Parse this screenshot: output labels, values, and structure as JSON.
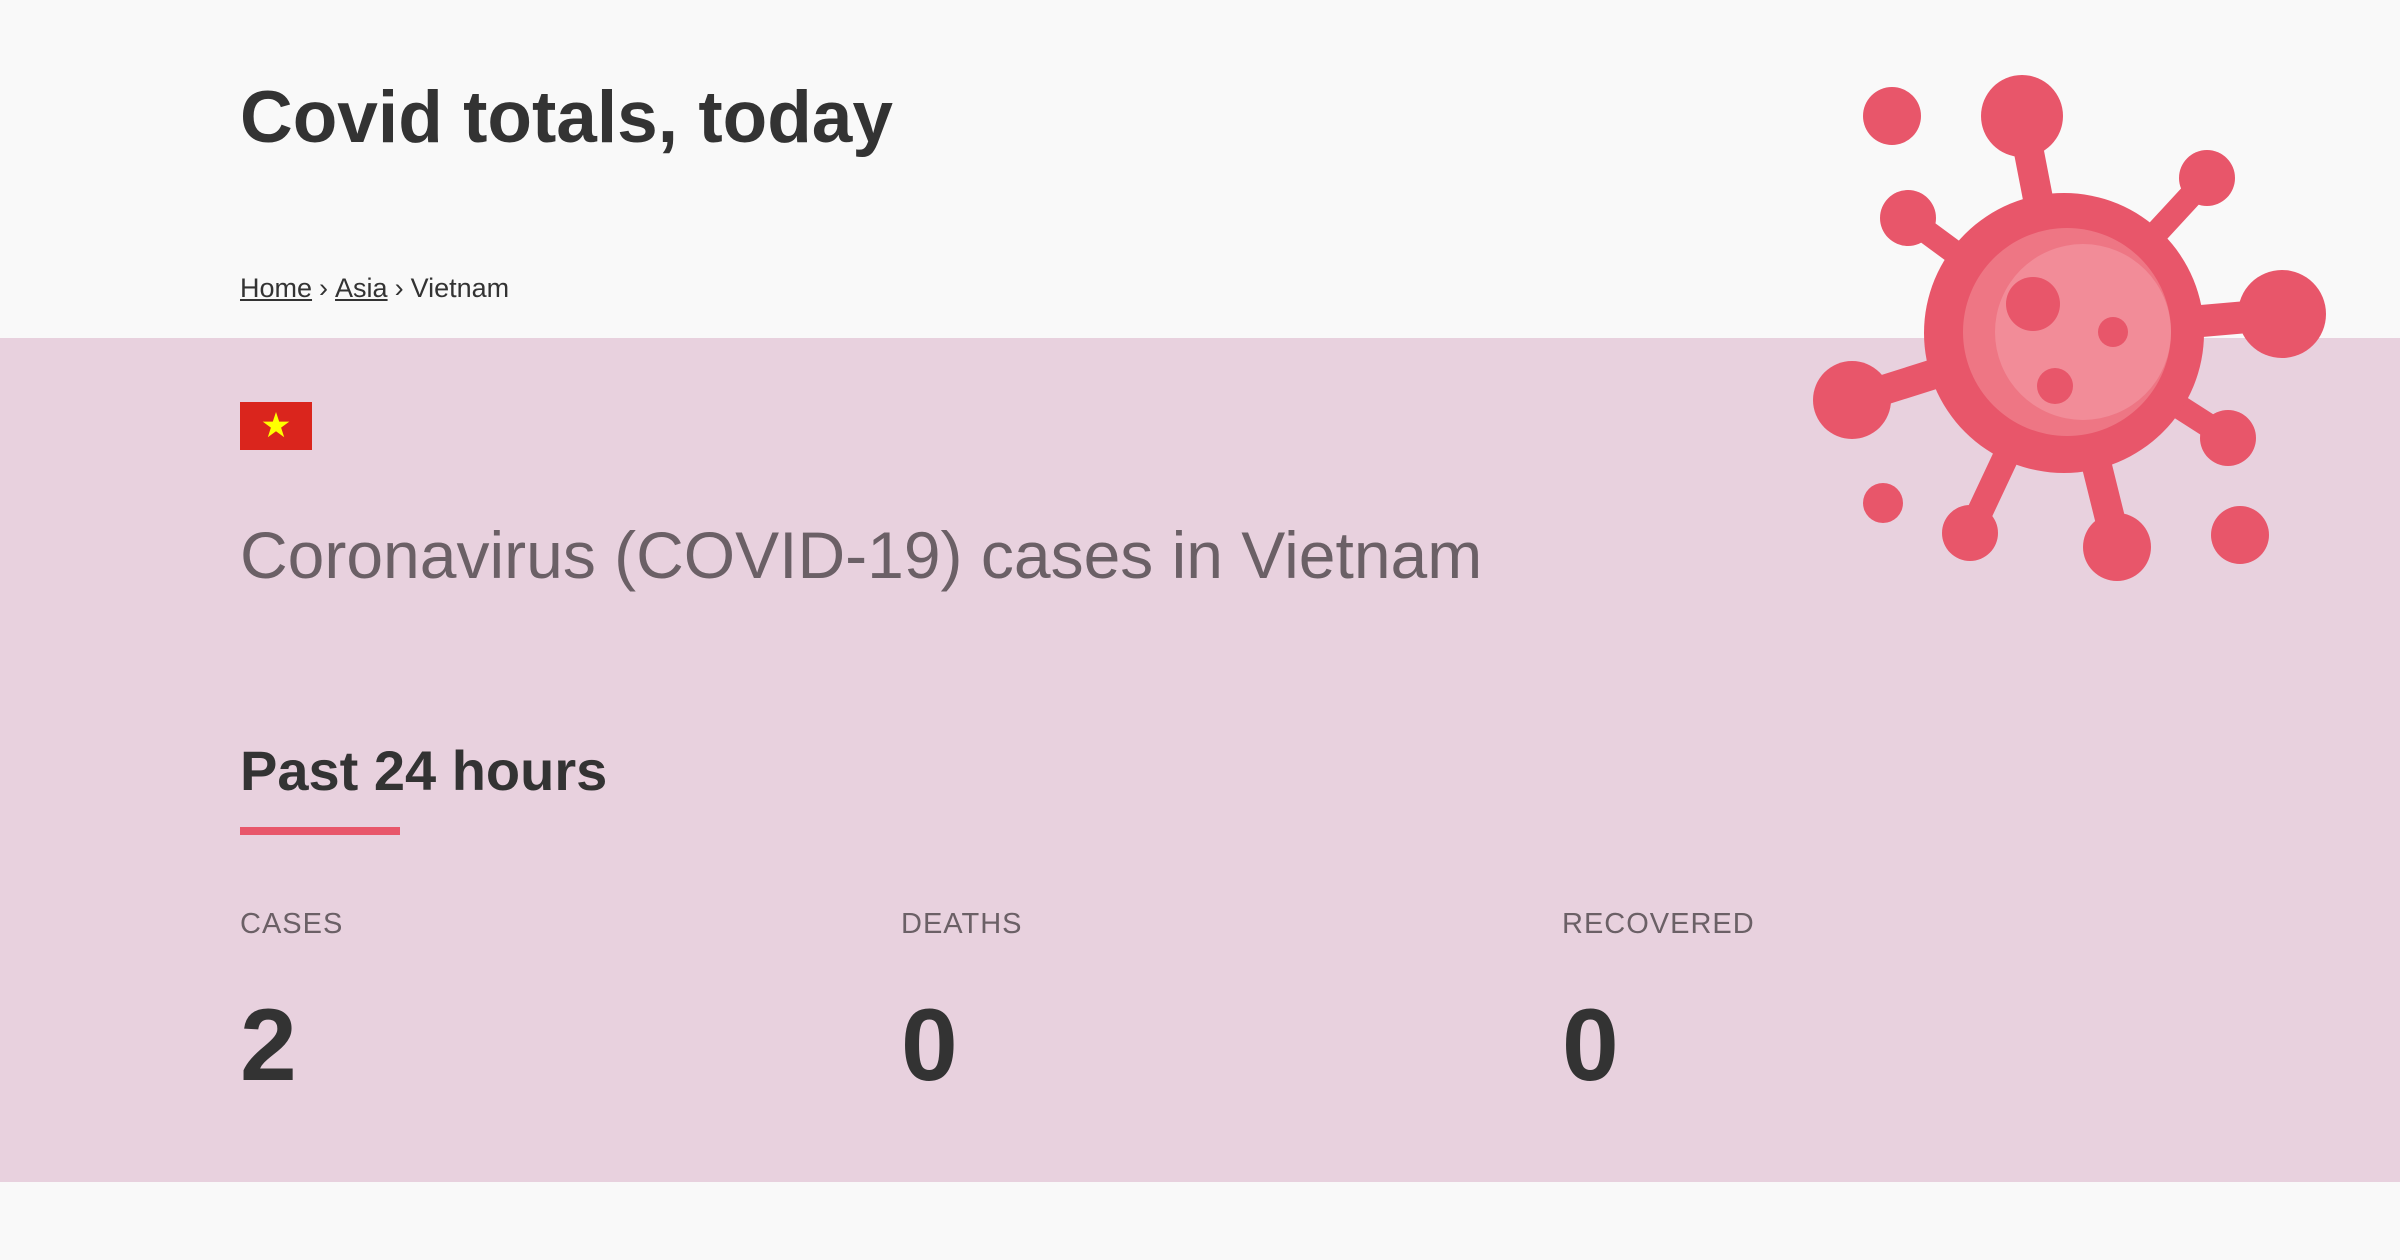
{
  "header": {
    "title": "Covid totals, today"
  },
  "breadcrumb": {
    "items": [
      {
        "label": "Home",
        "link": true
      },
      {
        "label": "Asia",
        "link": true
      },
      {
        "label": "Vietnam",
        "link": false
      }
    ],
    "separator": "›"
  },
  "country": {
    "title": "Coronavirus (COVID-19) cases in Vietnam",
    "flag_icon": "vietnam-flag-icon",
    "flag_colors": {
      "field": "#da251d",
      "star": "#ffff00"
    }
  },
  "section": {
    "heading": "Past 24 hours",
    "accent_color": "#e8566a"
  },
  "stats": [
    {
      "label": "CASES",
      "value": "2"
    },
    {
      "label": "DEATHS",
      "value": "0"
    },
    {
      "label": "RECOVERED",
      "value": "0"
    }
  ],
  "decoration": {
    "icon": "virus-icon",
    "color": "#e8566a",
    "highlight_color": "#f28c98"
  },
  "colors": {
    "band_background": "#e8d1de",
    "page_background": "#f9f9f9",
    "text": "#333333",
    "muted_text": "#6b6066"
  }
}
